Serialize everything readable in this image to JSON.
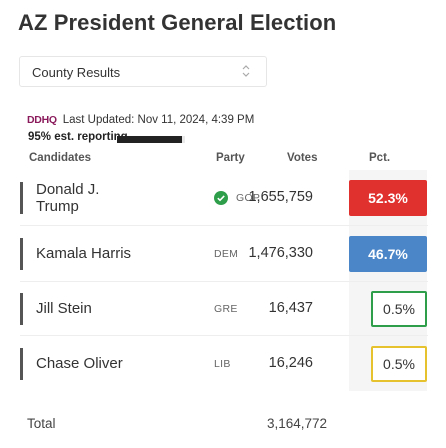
{
  "title": "AZ President General Election",
  "county_select": {
    "value": "County Results"
  },
  "source": {
    "logo": "DDHQ",
    "last_updated": "Last Updated: Nov 11, 2024, 4:39 PM",
    "reporting_label": "95% est. reporting",
    "reporting_pct": 95
  },
  "headers": {
    "candidates": "Candidates",
    "party": "Party",
    "votes": "Votes",
    "pct": "Pct."
  },
  "candidates": [
    {
      "name": "Donald J. Trump",
      "party": "GOP",
      "votes": "1,655,759",
      "pct": "52.3%",
      "pct_value": 52.3,
      "winner": true,
      "color": "#e0312e"
    },
    {
      "name": "Kamala Harris",
      "party": "DEM",
      "votes": "1,476,330",
      "pct": "46.7%",
      "pct_value": 46.7,
      "winner": false,
      "color": "#4a86c8"
    },
    {
      "name": "Jill Stein",
      "party": "GRE",
      "votes": "16,437",
      "pct": "0.5%",
      "pct_value": 0.5,
      "winner": false,
      "color": "#2e9e4a"
    },
    {
      "name": "Chase Oliver",
      "party": "LIB",
      "votes": "16,246",
      "pct": "0.5%",
      "pct_value": 0.5,
      "winner": false,
      "color": "#e6c22e"
    }
  ],
  "total": {
    "label": "Total",
    "value": "3,164,772"
  },
  "colors": {
    "winner_check": "#2e9e4a",
    "rule": "#555555"
  }
}
